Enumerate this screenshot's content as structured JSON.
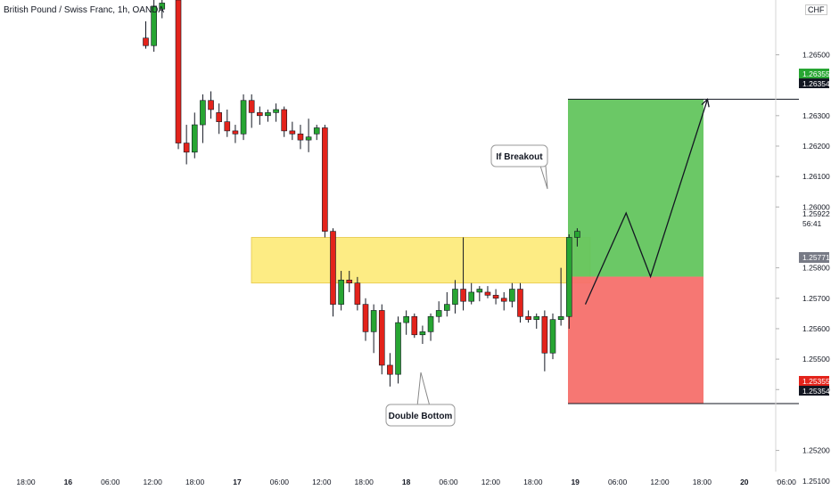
{
  "header": {
    "symbol_title": "British Pound / Swiss Franc, 1h, OANDA",
    "currency": "CHF"
  },
  "annotations": {
    "breakout_label": "If Breakout",
    "double_bottom_label": "Double Bottom"
  },
  "price_axis_tags": {
    "target_green": "1.26355",
    "target_black": "1.26354",
    "current_price": "1.25922",
    "countdown": "56:41",
    "entry": "1.25771",
    "stop_red": "1.25355",
    "stop_black": "1.25354"
  },
  "colors": {
    "up": "#27a532",
    "down": "#e3231b",
    "zone": "#fde96f",
    "profit": "#63c55e",
    "loss": "#f6706b"
  },
  "chart_data": {
    "type": "candlestick",
    "timeframe": "1h",
    "y_tick_labels": [
      "1.26500",
      "1.26300",
      "1.26200",
      "1.26100",
      "1.26000",
      "1.25800",
      "1.25700",
      "1.25600",
      "1.25500",
      "1.25400",
      "1.25200",
      "1.25100"
    ],
    "x_tick_labels": [
      "18:00",
      "16",
      "06:00",
      "12:00",
      "18:00",
      "17",
      "06:00",
      "12:00",
      "18:00",
      "18",
      "06:00",
      "12:00",
      "18:00",
      "19",
      "06:00",
      "12:00",
      "18:00",
      "20",
      "06:00"
    ],
    "ylim": [
      1.2507,
      1.2668
    ],
    "candles": [
      {
        "t": 0,
        "o": 1.26555,
        "h": 1.2661,
        "l": 1.2652,
        "c": 1.2653
      },
      {
        "t": 1,
        "o": 1.2653,
        "h": 1.2668,
        "l": 1.2651,
        "c": 1.2666
      },
      {
        "t": 2,
        "o": 1.2665,
        "h": 1.267,
        "l": 1.2662,
        "c": 1.2667
      },
      {
        "t": 4,
        "o": 1.2668,
        "h": 1.267,
        "l": 1.2619,
        "c": 1.2621
      },
      {
        "t": 5,
        "o": 1.2621,
        "h": 1.2627,
        "l": 1.2614,
        "c": 1.2618
      },
      {
        "t": 6,
        "o": 1.2618,
        "h": 1.2631,
        "l": 1.2616,
        "c": 1.2627
      },
      {
        "t": 7,
        "o": 1.2627,
        "h": 1.2637,
        "l": 1.2621,
        "c": 1.2635
      },
      {
        "t": 8,
        "o": 1.2635,
        "h": 1.2638,
        "l": 1.2629,
        "c": 1.2632
      },
      {
        "t": 9,
        "o": 1.2631,
        "h": 1.2634,
        "l": 1.2624,
        "c": 1.2628
      },
      {
        "t": 10,
        "o": 1.2628,
        "h": 1.2632,
        "l": 1.2623,
        "c": 1.2625
      },
      {
        "t": 11,
        "o": 1.2625,
        "h": 1.2627,
        "l": 1.2621,
        "c": 1.2624
      },
      {
        "t": 12,
        "o": 1.2624,
        "h": 1.2637,
        "l": 1.2622,
        "c": 1.2635
      },
      {
        "t": 13,
        "o": 1.2635,
        "h": 1.2637,
        "l": 1.2626,
        "c": 1.2631
      },
      {
        "t": 14,
        "o": 1.2631,
        "h": 1.2633,
        "l": 1.2627,
        "c": 1.263
      },
      {
        "t": 15,
        "o": 1.263,
        "h": 1.2632,
        "l": 1.2628,
        "c": 1.2631
      },
      {
        "t": 16,
        "o": 1.2631,
        "h": 1.2634,
        "l": 1.2628,
        "c": 1.2632
      },
      {
        "t": 17,
        "o": 1.2632,
        "h": 1.2633,
        "l": 1.2623,
        "c": 1.2625
      },
      {
        "t": 18,
        "o": 1.2625,
        "h": 1.2628,
        "l": 1.2622,
        "c": 1.2624
      },
      {
        "t": 19,
        "o": 1.2624,
        "h": 1.2627,
        "l": 1.2619,
        "c": 1.2622
      },
      {
        "t": 20,
        "o": 1.2622,
        "h": 1.2629,
        "l": 1.2618,
        "c": 1.2623
      },
      {
        "t": 21,
        "o": 1.2624,
        "h": 1.2627,
        "l": 1.2622,
        "c": 1.2626
      },
      {
        "t": 22,
        "o": 1.2626,
        "h": 1.2627,
        "l": 1.259,
        "c": 1.2592
      },
      {
        "t": 23,
        "o": 1.2592,
        "h": 1.2593,
        "l": 1.2564,
        "c": 1.2568
      },
      {
        "t": 24,
        "o": 1.2568,
        "h": 1.2579,
        "l": 1.2566,
        "c": 1.2576
      },
      {
        "t": 25,
        "o": 1.2576,
        "h": 1.2579,
        "l": 1.2572,
        "c": 1.2575
      },
      {
        "t": 26,
        "o": 1.2575,
        "h": 1.2577,
        "l": 1.2566,
        "c": 1.2568
      },
      {
        "t": 27,
        "o": 1.2568,
        "h": 1.257,
        "l": 1.2556,
        "c": 1.2559
      },
      {
        "t": 28,
        "o": 1.2559,
        "h": 1.2568,
        "l": 1.2552,
        "c": 1.2566
      },
      {
        "t": 29,
        "o": 1.2566,
        "h": 1.2568,
        "l": 1.2545,
        "c": 1.2548
      },
      {
        "t": 30,
        "o": 1.2548,
        "h": 1.2552,
        "l": 1.2541,
        "c": 1.2545
      },
      {
        "t": 31,
        "o": 1.2545,
        "h": 1.2564,
        "l": 1.2542,
        "c": 1.2562
      },
      {
        "t": 32,
        "o": 1.2562,
        "h": 1.2566,
        "l": 1.2558,
        "c": 1.2564
      },
      {
        "t": 33,
        "o": 1.2564,
        "h": 1.2565,
        "l": 1.2557,
        "c": 1.2558
      },
      {
        "t": 34,
        "o": 1.2558,
        "h": 1.2561,
        "l": 1.2555,
        "c": 1.2559
      },
      {
        "t": 35,
        "o": 1.2559,
        "h": 1.2565,
        "l": 1.2556,
        "c": 1.2564
      },
      {
        "t": 36,
        "o": 1.2564,
        "h": 1.2569,
        "l": 1.2562,
        "c": 1.2566
      },
      {
        "t": 37,
        "o": 1.2566,
        "h": 1.2572,
        "l": 1.2564,
        "c": 1.2568
      },
      {
        "t": 38,
        "o": 1.2568,
        "h": 1.2576,
        "l": 1.2565,
        "c": 1.2573
      },
      {
        "t": 39,
        "o": 1.2573,
        "h": 1.259,
        "l": 1.2566,
        "c": 1.2569
      },
      {
        "t": 40,
        "o": 1.2569,
        "h": 1.2575,
        "l": 1.2568,
        "c": 1.2572
      },
      {
        "t": 41,
        "o": 1.2572,
        "h": 1.2574,
        "l": 1.2569,
        "c": 1.2573
      },
      {
        "t": 42,
        "o": 1.2572,
        "h": 1.2574,
        "l": 1.257,
        "c": 1.2571
      },
      {
        "t": 43,
        "o": 1.2571,
        "h": 1.2573,
        "l": 1.2568,
        "c": 1.257
      },
      {
        "t": 44,
        "o": 1.257,
        "h": 1.2572,
        "l": 1.2566,
        "c": 1.2569
      },
      {
        "t": 45,
        "o": 1.2569,
        "h": 1.2575,
        "l": 1.2567,
        "c": 1.2573
      },
      {
        "t": 46,
        "o": 1.2573,
        "h": 1.2575,
        "l": 1.2562,
        "c": 1.2564
      },
      {
        "t": 47,
        "o": 1.2564,
        "h": 1.2566,
        "l": 1.2562,
        "c": 1.2563
      },
      {
        "t": 48,
        "o": 1.2563,
        "h": 1.2565,
        "l": 1.256,
        "c": 1.2564
      },
      {
        "t": 49,
        "o": 1.2564,
        "h": 1.2566,
        "l": 1.2546,
        "c": 1.2552
      },
      {
        "t": 50,
        "o": 1.2552,
        "h": 1.2565,
        "l": 1.255,
        "c": 1.2563
      },
      {
        "t": 51,
        "o": 1.2563,
        "h": 1.258,
        "l": 1.2561,
        "c": 1.2564
      },
      {
        "t": 52,
        "o": 1.2564,
        "h": 1.2591,
        "l": 1.256,
        "c": 1.259
      },
      {
        "t": 53,
        "o": 1.259,
        "h": 1.2593,
        "l": 1.2587,
        "c": 1.2592
      }
    ],
    "zones": {
      "resistance": [
        1.2575,
        1.259
      ],
      "take_profit": [
        1.25771,
        1.26354
      ],
      "stop_loss": [
        1.25354,
        1.25771
      ]
    },
    "projection_path": [
      [
        54,
        1.2568
      ],
      [
        59,
        1.2598
      ],
      [
        62,
        1.25771
      ],
      [
        69,
        1.26354
      ]
    ]
  }
}
